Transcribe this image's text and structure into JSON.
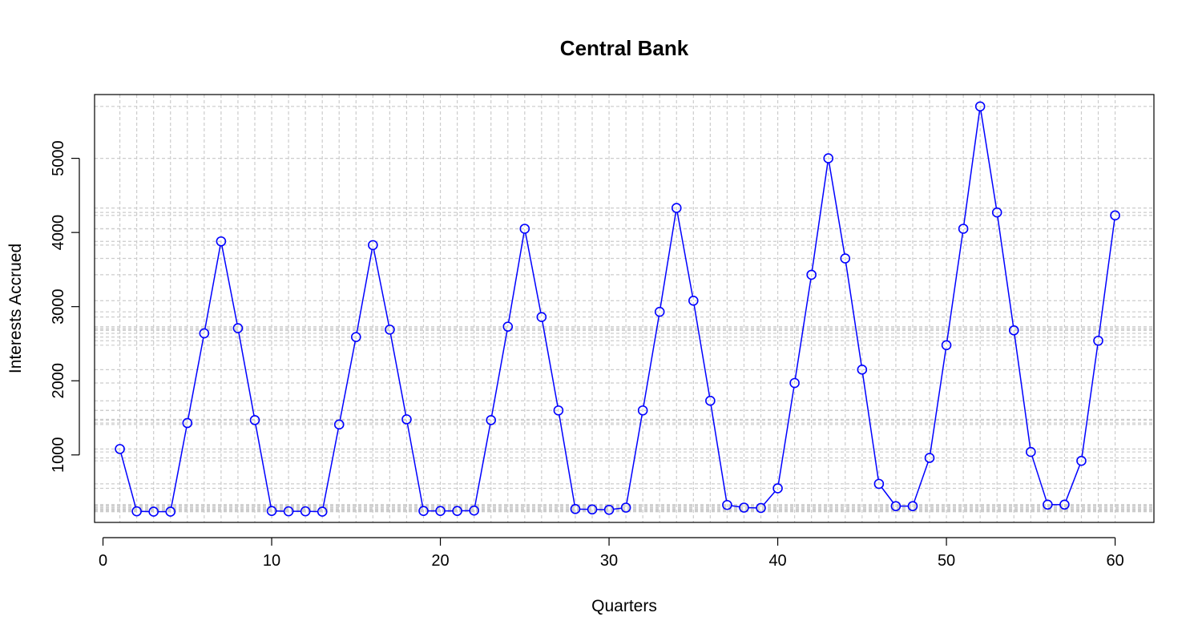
{
  "chart_data": {
    "type": "line",
    "title": "Central Bank",
    "xlabel": "Quarters",
    "ylabel": "Interests Accrued",
    "xlim": [
      -0.5,
      62.3
    ],
    "ylim": [
      90,
      5860
    ],
    "xticks": [
      0,
      10,
      20,
      30,
      40,
      50,
      60
    ],
    "yticks": [
      1000,
      2000,
      3000,
      4000,
      5000
    ],
    "grid": true,
    "series_color": "#0000ff",
    "grid_color": "#cccccc",
    "x": [
      1,
      2,
      3,
      4,
      5,
      6,
      7,
      8,
      9,
      10,
      11,
      12,
      13,
      14,
      15,
      16,
      17,
      18,
      19,
      20,
      21,
      22,
      23,
      24,
      25,
      26,
      27,
      28,
      29,
      30,
      31,
      32,
      33,
      34,
      35,
      36,
      37,
      38,
      39,
      40,
      41,
      42,
      43,
      44,
      45,
      46,
      47,
      48,
      49,
      50,
      51,
      52,
      53,
      54,
      55,
      56,
      57,
      58,
      59,
      60
    ],
    "values": [
      1080,
      240,
      235,
      235,
      1430,
      2640,
      3880,
      2710,
      1470,
      245,
      240,
      240,
      235,
      1410,
      2590,
      3830,
      2690,
      1480,
      245,
      245,
      245,
      250,
      1470,
      2730,
      4050,
      2860,
      1600,
      270,
      265,
      260,
      290,
      1600,
      2930,
      4330,
      3080,
      1730,
      325,
      290,
      285,
      550,
      1970,
      3430,
      5000,
      3650,
      2150,
      610,
      310,
      310,
      960,
      2480,
      4050,
      5700,
      4270,
      2680,
      1040,
      330,
      330,
      920,
      2540,
      4230
    ]
  }
}
